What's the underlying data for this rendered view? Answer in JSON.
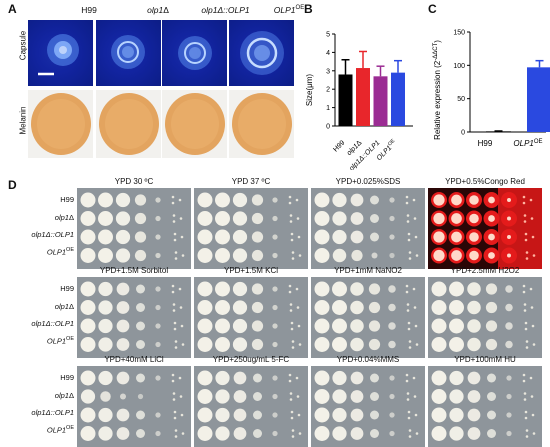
{
  "panels": {
    "A": "A",
    "B": "B",
    "C": "C",
    "D": "D"
  },
  "strains": {
    "wt": "H99",
    "del_base": "olp1",
    "del_sym": "Δ",
    "comp_base": "olp1Δ::",
    "comp_gene": "OLP1",
    "oe_base": "OLP1",
    "oe_sup": "OE"
  },
  "panel_a": {
    "row1": "Capsule",
    "row2": "Melanin"
  },
  "panel_b": {
    "ylabel": "Size(μm)",
    "ticks": [
      "0",
      "1",
      "2",
      "3",
      "4",
      "5"
    ],
    "categories": [
      "H99",
      "olp1Δ",
      "olp1Δ::OLP1",
      "OLP1OE"
    ]
  },
  "panel_c": {
    "ylabel": "Relative expression (2",
    "ylabel_sup": "-ΔΔCT",
    "ylabel_end": ")",
    "ticks": [
      "0",
      "50",
      "100",
      "150"
    ],
    "categories": [
      "H99",
      "OLP1OE"
    ]
  },
  "panel_d": {
    "conditions": [
      "YPD 30 ºC",
      "YPD 37 ºC",
      "YPD+0.025%SDS",
      "YPD+0.5%Congo Red",
      "YPD+1.5M Sorbitol",
      "YPD+1.5M KCl",
      "YPD+1mM NaNO2",
      "YPD+2.5mM H2O2",
      "YPD+40mM LiCl",
      "YPD+250ug/mL 5-FC",
      "YPD+0.04%MMS",
      "YPD+100mM HU"
    ]
  },
  "chart_data": [
    {
      "type": "bar",
      "ylabel": "Size(μm)",
      "categories": [
        "H99",
        "olp1Δ",
        "olp1Δ::OLP1",
        "OLP1OE"
      ],
      "values": [
        2.8,
        3.15,
        2.7,
        2.9
      ],
      "errors": [
        0.8,
        0.9,
        0.55,
        0.65
      ],
      "colors": [
        "#000000",
        "#e8262b",
        "#9b2c93",
        "#2a49e0"
      ],
      "ylim": [
        0,
        5
      ]
    },
    {
      "type": "bar",
      "ylabel": "Relative expression (2-ΔΔCT)",
      "categories": [
        "H99",
        "OLP1OE"
      ],
      "values": [
        1,
        97
      ],
      "errors": [
        0.5,
        10
      ],
      "colors": [
        "#000000",
        "#2a49e0"
      ],
      "ylim": [
        0,
        150
      ]
    }
  ]
}
